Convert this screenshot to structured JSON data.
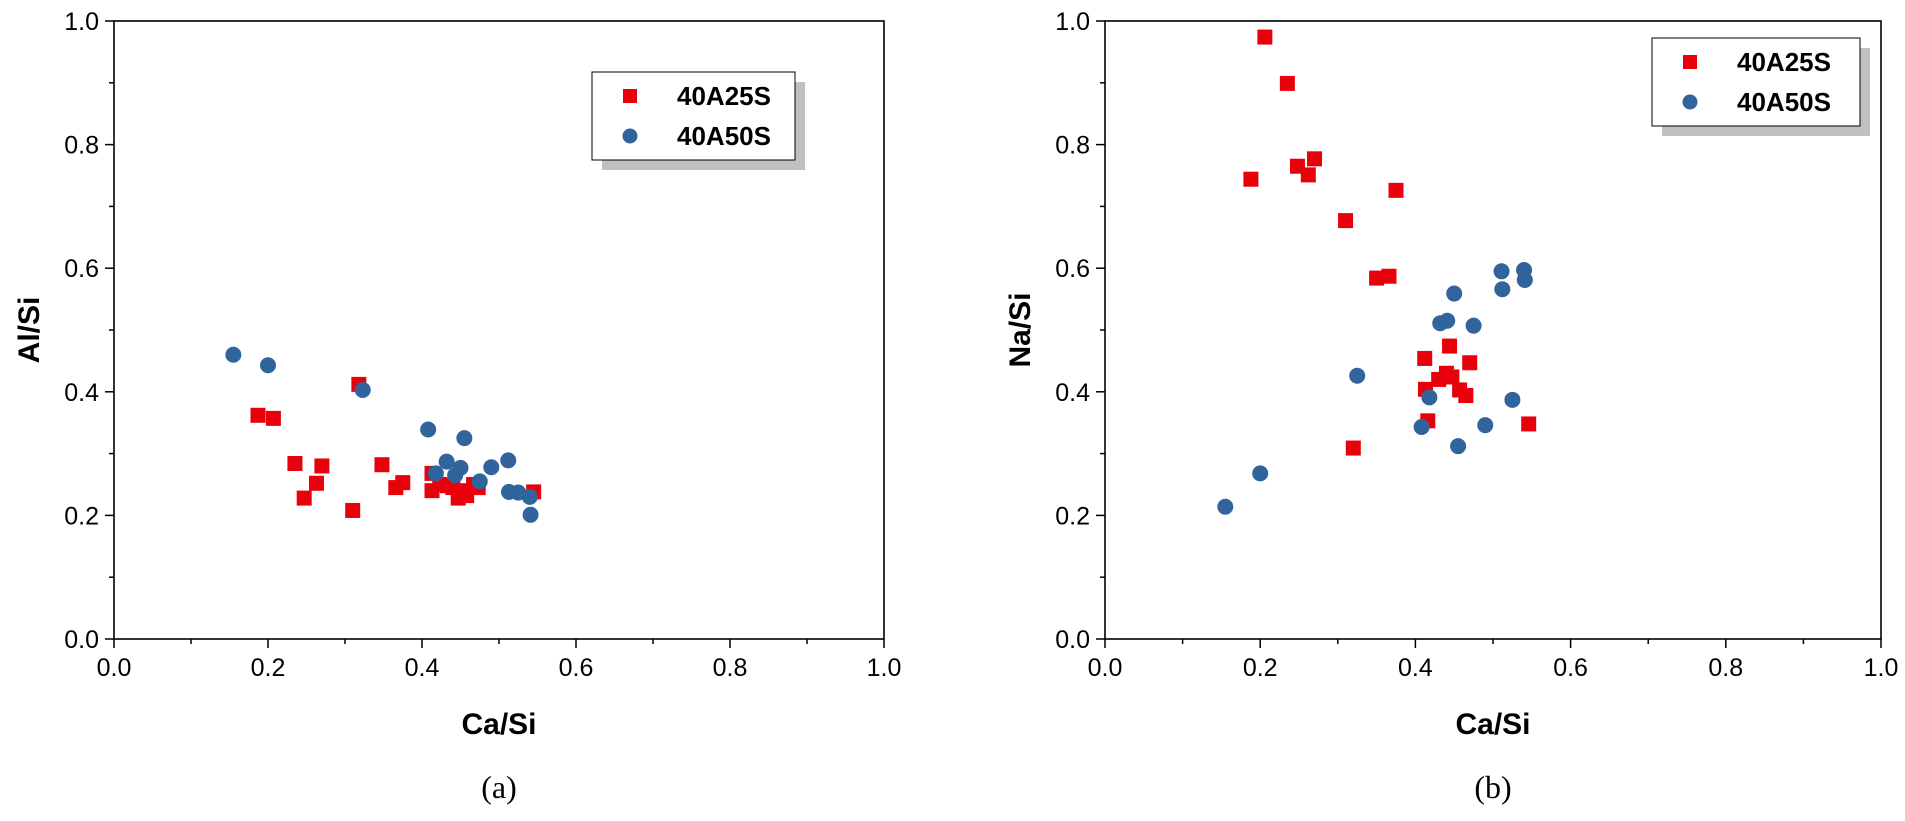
{
  "chart_data": [
    {
      "type": "scatter",
      "caption": "(a)",
      "xlabel": "Ca/Si",
      "ylabel": "Al/Si",
      "xlim": [
        0,
        1.0
      ],
      "ylim": [
        0,
        1.0
      ],
      "xticks": [
        "0.0",
        "0.2",
        "0.4",
        "0.6",
        "0.8",
        "1.0"
      ],
      "yticks": [
        "0.0",
        "0.2",
        "0.4",
        "0.6",
        "0.8",
        "1.0"
      ],
      "legend_position": "top-right",
      "series": [
        {
          "name": "40A25S",
          "marker": "square",
          "color": "#e8000b",
          "points": [
            [
              0.187,
              0.362
            ],
            [
              0.207,
              0.357
            ],
            [
              0.235,
              0.284
            ],
            [
              0.247,
              0.228
            ],
            [
              0.263,
              0.252
            ],
            [
              0.27,
              0.28
            ],
            [
              0.31,
              0.208
            ],
            [
              0.318,
              0.412
            ],
            [
              0.348,
              0.282
            ],
            [
              0.366,
              0.245
            ],
            [
              0.375,
              0.253
            ],
            [
              0.413,
              0.24
            ],
            [
              0.413,
              0.268
            ],
            [
              0.423,
              0.25
            ],
            [
              0.433,
              0.248
            ],
            [
              0.44,
              0.245
            ],
            [
              0.447,
              0.228
            ],
            [
              0.452,
              0.24
            ],
            [
              0.458,
              0.232
            ],
            [
              0.467,
              0.25
            ],
            [
              0.473,
              0.245
            ],
            [
              0.545,
              0.238
            ]
          ]
        },
        {
          "name": "40A50S",
          "marker": "circle",
          "color": "#31639c",
          "points": [
            [
              0.155,
              0.46
            ],
            [
              0.2,
              0.443
            ],
            [
              0.323,
              0.403
            ],
            [
              0.408,
              0.339
            ],
            [
              0.418,
              0.268
            ],
            [
              0.432,
              0.287
            ],
            [
              0.443,
              0.265
            ],
            [
              0.45,
              0.277
            ],
            [
              0.455,
              0.325
            ],
            [
              0.475,
              0.255
            ],
            [
              0.49,
              0.278
            ],
            [
              0.512,
              0.289
            ],
            [
              0.513,
              0.238
            ],
            [
              0.525,
              0.237
            ],
            [
              0.54,
              0.23
            ],
            [
              0.541,
              0.201
            ]
          ]
        }
      ]
    },
    {
      "type": "scatter",
      "caption": "(b)",
      "xlabel": "Ca/Si",
      "ylabel": "Na/Si",
      "xlim": [
        0,
        1.0
      ],
      "ylim": [
        0,
        1.0
      ],
      "xticks": [
        "0.0",
        "0.2",
        "0.4",
        "0.6",
        "0.8",
        "1.0"
      ],
      "yticks": [
        "0.0",
        "0.2",
        "0.4",
        "0.6",
        "0.8",
        "1.0"
      ],
      "legend_position": "top-right",
      "series": [
        {
          "name": "40A25S",
          "marker": "square",
          "color": "#e8000b",
          "points": [
            [
              0.188,
              0.744
            ],
            [
              0.206,
              0.974
            ],
            [
              0.235,
              0.899
            ],
            [
              0.248,
              0.765
            ],
            [
              0.262,
              0.751
            ],
            [
              0.27,
              0.777
            ],
            [
              0.31,
              0.677
            ],
            [
              0.32,
              0.309
            ],
            [
              0.35,
              0.584
            ],
            [
              0.366,
              0.587
            ],
            [
              0.375,
              0.726
            ],
            [
              0.412,
              0.454
            ],
            [
              0.413,
              0.404
            ],
            [
              0.416,
              0.353
            ],
            [
              0.43,
              0.42
            ],
            [
              0.44,
              0.43
            ],
            [
              0.444,
              0.474
            ],
            [
              0.447,
              0.424
            ],
            [
              0.457,
              0.403
            ],
            [
              0.465,
              0.394
            ],
            [
              0.47,
              0.447
            ],
            [
              0.546,
              0.348
            ]
          ]
        },
        {
          "name": "40A50S",
          "marker": "circle",
          "color": "#31639c",
          "points": [
            [
              0.155,
              0.214
            ],
            [
              0.2,
              0.268
            ],
            [
              0.325,
              0.426
            ],
            [
              0.408,
              0.343
            ],
            [
              0.418,
              0.391
            ],
            [
              0.432,
              0.511
            ],
            [
              0.441,
              0.515
            ],
            [
              0.45,
              0.559
            ],
            [
              0.455,
              0.312
            ],
            [
              0.475,
              0.507
            ],
            [
              0.49,
              0.346
            ],
            [
              0.511,
              0.595
            ],
            [
              0.512,
              0.566
            ],
            [
              0.525,
              0.387
            ],
            [
              0.54,
              0.597
            ],
            [
              0.541,
              0.581
            ]
          ]
        }
      ]
    }
  ]
}
